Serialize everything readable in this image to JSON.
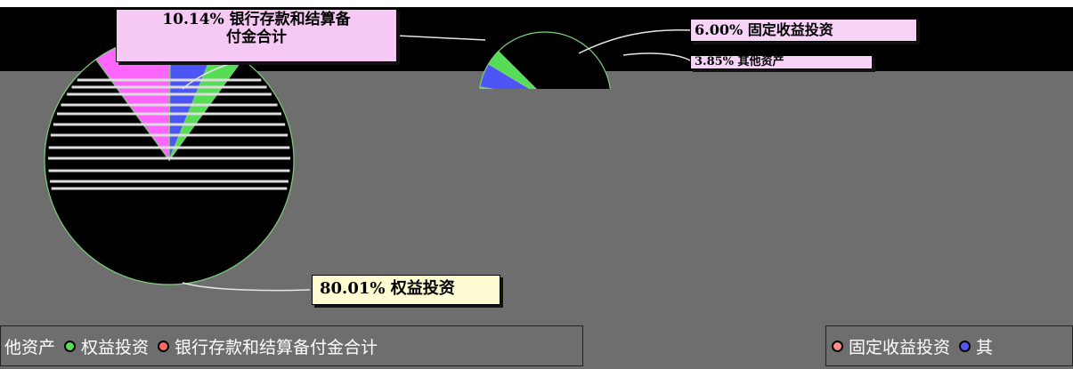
{
  "chart_data": [
    {
      "type": "pie",
      "title": "",
      "categories": [
        "权益投资",
        "银行存款和结算备付金合计",
        "固定收益投资",
        "其他资产"
      ],
      "values": [
        80.01,
        10.14,
        6.0,
        3.85
      ],
      "colors": [
        "#000000",
        "#ff66ff",
        "#4d55f5",
        "#55dd55"
      ],
      "labels": {
        "equity": "80.01% 权益投资",
        "bank": "10.14% 银行存款和结算备",
        "bank_line2": "付金合计",
        "fixed": "6.00% 固定收益投资",
        "other": "3.85% 其他资产"
      }
    }
  ],
  "legend": {
    "left_items": [
      {
        "label": "他资产",
        "color": "#4d55f5"
      },
      {
        "label": "权益投资",
        "color": "#55dd55"
      },
      {
        "label": "银行存款和结算备付金合计",
        "color": "#ff6666"
      }
    ],
    "right_items": [
      {
        "label": "固定收益投资",
        "color": "#ff8a8a"
      },
      {
        "label": "其",
        "color": "#5555ff"
      }
    ]
  }
}
